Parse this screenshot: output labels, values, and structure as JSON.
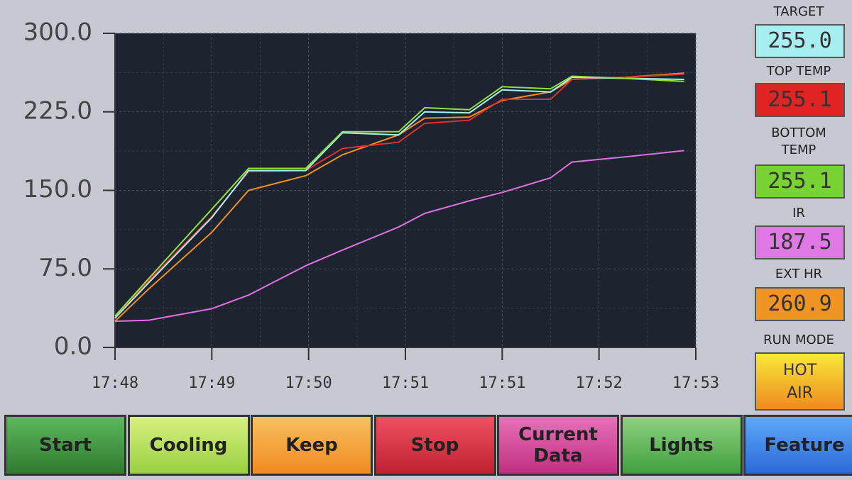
{
  "chart_data": {
    "type": "line",
    "x": [
      0,
      3.5,
      10,
      13.8,
      19.7,
      23.5,
      29.3,
      32,
      36.6,
      40,
      45,
      47.2,
      52.7,
      58.8
    ],
    "xlim": [
      0,
      60
    ],
    "xticks": [
      {
        "value": 0,
        "label": "17:48"
      },
      {
        "value": 10,
        "label": "17:49"
      },
      {
        "value": 20,
        "label": "17:50"
      },
      {
        "value": 30,
        "label": "17:51"
      },
      {
        "value": 40,
        "label": "17:51"
      },
      {
        "value": 50,
        "label": "17:52"
      },
      {
        "value": 60,
        "label": "17:53"
      }
    ],
    "ylim": [
      0,
      300
    ],
    "yticks": [
      {
        "value": 0,
        "label": "0.0"
      },
      {
        "value": 75,
        "label": "75.0"
      },
      {
        "value": 150,
        "label": "150.0"
      },
      {
        "value": 225,
        "label": "225.0"
      },
      {
        "value": 300,
        "label": "300.0"
      }
    ],
    "grid": true,
    "series": [
      {
        "color": "#f09020",
        "values": [
          25,
          56,
          110,
          150,
          164,
          184,
          203,
          219,
          220,
          236,
          244,
          256,
          258,
          262
        ]
      },
      {
        "color": "#e03030",
        "values": [
          30,
          64,
          125,
          168,
          169,
          190,
          196,
          214,
          217,
          237,
          237,
          256,
          258,
          261
        ]
      },
      {
        "color": "#a8f0f0",
        "values": [
          28,
          62,
          124,
          169,
          169,
          205,
          203,
          225,
          224,
          246,
          244,
          258,
          257,
          256
        ]
      },
      {
        "color": "#90e040",
        "values": [
          30,
          66,
          132,
          171,
          171,
          206,
          206,
          229,
          227,
          249,
          247,
          259,
          257,
          254
        ]
      },
      {
        "color": "#e070e0",
        "values": [
          25,
          26,
          37,
          50,
          78,
          93,
          115,
          128,
          140,
          148,
          162,
          177,
          182,
          188
        ]
      }
    ]
  },
  "panels": [
    {
      "label": "TARGET",
      "value": "255.0"
    },
    {
      "label": "TOP TEMP",
      "value": "255.1"
    },
    {
      "label": "BOTTOM TEMP",
      "value": "255.1"
    },
    {
      "label": "IR",
      "value": "187.5"
    },
    {
      "label": "EXT HR",
      "value": "260.9"
    }
  ],
  "run_mode": {
    "label": "RUN MODE",
    "value": "HOT AIR"
  },
  "buttons": [
    "Start",
    "Cooling",
    "Keep",
    "Stop",
    "Current Data",
    "Lights",
    "Feature"
  ]
}
